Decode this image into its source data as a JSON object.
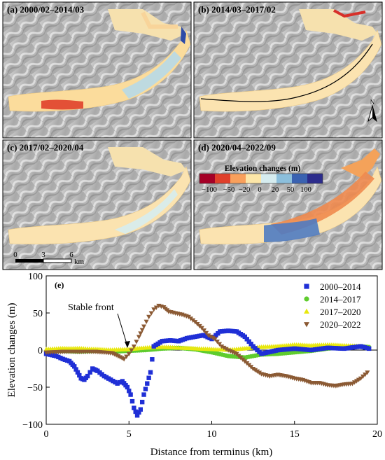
{
  "panels": [
    {
      "label": "(a) 2000/02–2014/03"
    },
    {
      "label": "(b) 2014/03–2017/02"
    },
    {
      "label": "(c) 2017/02–2020/04"
    },
    {
      "label": "(d) 2020/04–2022/09"
    }
  ],
  "north_label": "N",
  "colorbar": {
    "title": "Elevation changes (m)",
    "ticks": [
      "−100",
      "−50",
      "−20",
      "0",
      "20",
      "50",
      "100"
    ],
    "colors": [
      "#a50026",
      "#e0402b",
      "#f9a05c",
      "#fce6a8",
      "#d6ecef",
      "#8cbfdc",
      "#3a62b1",
      "#2c2c8c"
    ]
  },
  "scalebar": {
    "ticks": [
      "0",
      "3",
      "6"
    ],
    "unit": "km"
  },
  "chart_data": {
    "type": "scatter",
    "panel_label": "(e)",
    "xlabel": "Distance from terminus (km)",
    "ylabel": "Elevation changes (m)",
    "xlim": [
      0,
      20
    ],
    "ylim": [
      -100,
      100
    ],
    "xticks": [
      "0",
      "5",
      "10",
      "15",
      "20"
    ],
    "yticks": [
      "100",
      "50",
      "0",
      "−50",
      "−100"
    ],
    "annotation": "Stable front",
    "legend_position": "top-right",
    "series": [
      {
        "name": "2000–2014",
        "color": "#1f2fd6",
        "marker": "square",
        "points": [
          [
            0,
            -5
          ],
          [
            0.6,
            -8
          ],
          [
            1.0,
            -12
          ],
          [
            1.4,
            -15
          ],
          [
            1.7,
            -22
          ],
          [
            1.9,
            -30
          ],
          [
            2.1,
            -38
          ],
          [
            2.3,
            -40
          ],
          [
            2.5,
            -35
          ],
          [
            2.8,
            -25
          ],
          [
            3.1,
            -28
          ],
          [
            3.5,
            -35
          ],
          [
            3.9,
            -40
          ],
          [
            4.3,
            -45
          ],
          [
            4.6,
            -42
          ],
          [
            4.9,
            -50
          ],
          [
            5.1,
            -60
          ],
          [
            5.3,
            -78
          ],
          [
            5.5,
            -88
          ],
          [
            5.7,
            -80
          ],
          [
            5.9,
            -60
          ],
          [
            6.1,
            -45
          ],
          [
            6.3,
            -30
          ],
          [
            6.5,
            5
          ],
          [
            7.0,
            12
          ],
          [
            7.5,
            13
          ],
          [
            8.0,
            12
          ],
          [
            8.5,
            16
          ],
          [
            9.0,
            18
          ],
          [
            9.5,
            20
          ],
          [
            10.0,
            15
          ],
          [
            10.5,
            25
          ],
          [
            11.0,
            26
          ],
          [
            11.5,
            25
          ],
          [
            12.0,
            18
          ],
          [
            12.5,
            5
          ],
          [
            13.0,
            -5
          ],
          [
            14.0,
            0
          ],
          [
            15.0,
            2
          ],
          [
            16.0,
            0
          ],
          [
            17.0,
            3
          ],
          [
            18.0,
            2
          ],
          [
            19.0,
            5
          ],
          [
            19.5,
            2
          ]
        ]
      },
      {
        "name": "2014–2017",
        "color": "#5fcc2e",
        "marker": "circle",
        "points": [
          [
            0,
            -2
          ],
          [
            1,
            -1
          ],
          [
            2,
            -2
          ],
          [
            3,
            -1
          ],
          [
            4,
            -2
          ],
          [
            5,
            -1
          ],
          [
            6,
            0
          ],
          [
            7,
            2
          ],
          [
            8,
            3
          ],
          [
            9,
            1
          ],
          [
            10,
            -3
          ],
          [
            11,
            -8
          ],
          [
            12,
            -10
          ],
          [
            13,
            -6
          ],
          [
            14,
            -5
          ],
          [
            15,
            -3
          ],
          [
            16,
            -1
          ],
          [
            17,
            2
          ],
          [
            18,
            4
          ],
          [
            19,
            5
          ],
          [
            19.5,
            4
          ]
        ]
      },
      {
        "name": "2017–2020",
        "color": "#e8e80e",
        "marker": "triangle-up",
        "points": [
          [
            0,
            1
          ],
          [
            1,
            2
          ],
          [
            2,
            2
          ],
          [
            3,
            1
          ],
          [
            4,
            0
          ],
          [
            5,
            1
          ],
          [
            6,
            3
          ],
          [
            7,
            4
          ],
          [
            8,
            3
          ],
          [
            9,
            2
          ],
          [
            10,
            1
          ],
          [
            11,
            0
          ],
          [
            12,
            2
          ],
          [
            13,
            4
          ],
          [
            14,
            5
          ],
          [
            15,
            7
          ],
          [
            16,
            6
          ],
          [
            17,
            7
          ],
          [
            18,
            6
          ],
          [
            19,
            5
          ],
          [
            19.5,
            3
          ]
        ]
      },
      {
        "name": "2020–2022",
        "color": "#8b5a34",
        "marker": "triangle-down",
        "points": [
          [
            0,
            -3
          ],
          [
            1,
            -2
          ],
          [
            2,
            -2
          ],
          [
            3,
            -2
          ],
          [
            4,
            -4
          ],
          [
            4.7,
            -12
          ],
          [
            5.0,
            -5
          ],
          [
            5.3,
            5
          ],
          [
            5.6,
            18
          ],
          [
            5.9,
            32
          ],
          [
            6.2,
            45
          ],
          [
            6.5,
            55
          ],
          [
            6.8,
            60
          ],
          [
            7.1,
            58
          ],
          [
            7.4,
            52
          ],
          [
            7.8,
            50
          ],
          [
            8.2,
            48
          ],
          [
            8.6,
            45
          ],
          [
            9.0,
            38
          ],
          [
            9.4,
            30
          ],
          [
            9.8,
            20
          ],
          [
            10.2,
            15
          ],
          [
            10.6,
            5
          ],
          [
            11.0,
            0
          ],
          [
            11.5,
            -5
          ],
          [
            12.0,
            -15
          ],
          [
            12.5,
            -25
          ],
          [
            13.0,
            -32
          ],
          [
            13.5,
            -35
          ],
          [
            14.0,
            -33
          ],
          [
            14.5,
            -35
          ],
          [
            15.0,
            -38
          ],
          [
            15.5,
            -40
          ],
          [
            16.0,
            -44
          ],
          [
            16.5,
            -44
          ],
          [
            17.0,
            -47
          ],
          [
            17.5,
            -48
          ],
          [
            18.0,
            -46
          ],
          [
            18.5,
            -45
          ],
          [
            19.0,
            -38
          ],
          [
            19.4,
            -30
          ]
        ]
      }
    ]
  }
}
